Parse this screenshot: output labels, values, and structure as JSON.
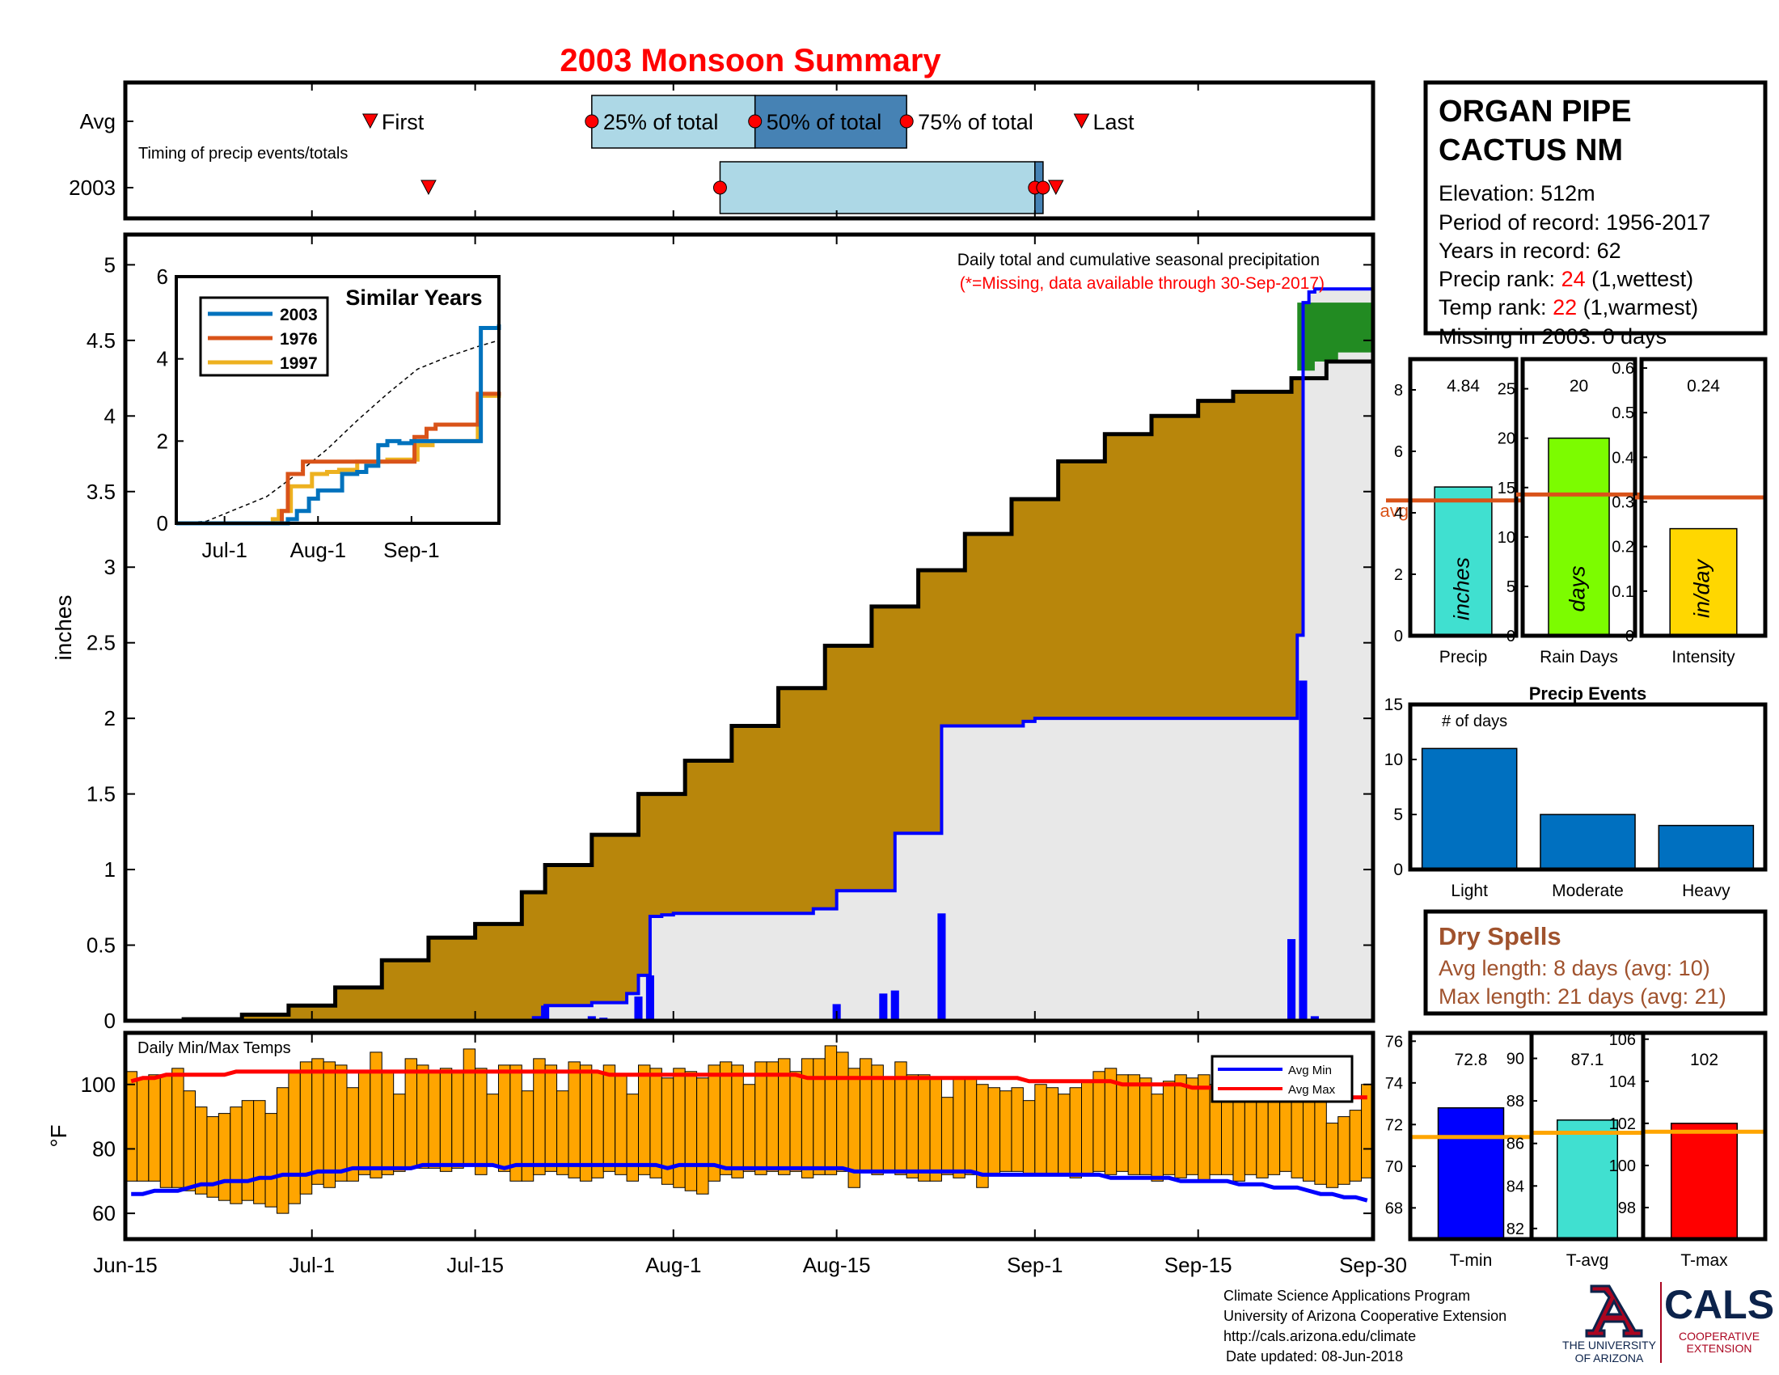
{
  "title": "2003 Monsoon Summary",
  "colors": {
    "title": "#ff0000",
    "avg_fill": "#b8860b",
    "year_fill": "#e8e8e8",
    "excess_fill": "#228b22",
    "daily_bar": "#0000ff",
    "temp_bar": "#ffa500",
    "avg_min": "#0000ff",
    "avg_max": "#ff0000",
    "box_light": "#add8e6",
    "box_dark": "#4682b4",
    "precip_bar": "#40e0d0",
    "raindays_bar": "#7cfc00",
    "intensity_bar": "#ffd700",
    "events_bar": "#0070c0",
    "tmin_bar": "#0000ff",
    "tavg_bar": "#40e0d0",
    "tmax_bar": "#ff0000",
    "avg_line": "#d95319",
    "temp_avg_line": "#ffa500",
    "dry_spells": "#a0522d",
    "rank_red": "#ff0000",
    "note_red": "#ff0000",
    "ua_red": "#ab0520",
    "ua_blue": "#0c234b"
  },
  "station": {
    "name_line1": "ORGAN PIPE",
    "name_line2": "CACTUS NM",
    "elevation": "Elevation: 512m",
    "period": "Period of record: 1956-2017",
    "years": "Years in record: 62",
    "precip_rank_label": "Precip rank: ",
    "precip_rank_value": "24",
    "precip_rank_suffix": " (1,wettest)",
    "temp_rank_label": "Temp rank: ",
    "temp_rank_value": "22",
    "temp_rank_suffix": " (1,warmest)",
    "missing": "Missing in 2003: 0 days"
  },
  "footer": {
    "line1": "Climate Science Applications Program",
    "line2": "University of Arizona Cooperative Extension",
    "line3": "http://cals.arizona.edu/climate",
    "line4": "Date updated: 08-Jun-2018",
    "ua_line1": "THE UNIVERSITY",
    "ua_line2": "OF ARIZONA",
    "cals": "CALS",
    "coop1": "COOPERATIVE",
    "coop2": "EXTENSION"
  },
  "chart_data": [
    {
      "id": "timing",
      "type": "timeline",
      "caption": "Timing of precip events/totals",
      "rows": [
        "Avg",
        "2003"
      ],
      "x_unit": "days since Jun-15",
      "avg": {
        "first": 21,
        "p25": 40,
        "p50": 54,
        "p75": 67,
        "last": 82,
        "labels": {
          "first": "First",
          "p25": "25% of total",
          "p50": "50% of total",
          "p75": "75% of total",
          "last": "Last"
        }
      },
      "year": {
        "first": 26,
        "p25": 51,
        "p50": 78,
        "p75": 78.7,
        "last": 79.8
      }
    },
    {
      "id": "main",
      "type": "area",
      "title": "Daily total and cumulative seasonal precipitation",
      "note": "(*=Missing, data available through 30-Sep-2017)",
      "ylabel": "inches",
      "ylim": [
        0,
        5.2
      ],
      "yticks": [
        0,
        0.5,
        1,
        1.5,
        2,
        2.5,
        3,
        3.5,
        4,
        4.5,
        5
      ],
      "ytick_labels": [
        "0",
        "0.5",
        "1",
        "1.5",
        "2",
        "2.5",
        "3",
        "3.5",
        "4",
        "4.5",
        "5"
      ],
      "xlim": [
        0,
        107
      ],
      "xticks": [
        0,
        16,
        30,
        47,
        61,
        78,
        92,
        107
      ],
      "xtick_labels": [
        "Jun-15",
        "Jul-1",
        "Jul-15",
        "Aug-1",
        "Aug-15",
        "Sep-1",
        "Sep-15",
        "Sep-30"
      ],
      "avg_cumulative": {
        "x": [
          0,
          5,
          10,
          14,
          18,
          22,
          26,
          30,
          34,
          36,
          40,
          44,
          48,
          52,
          56,
          60,
          64,
          68,
          72,
          76,
          80,
          84,
          88,
          92,
          95,
          100,
          103,
          107
        ],
        "y": [
          0,
          0.01,
          0.04,
          0.1,
          0.22,
          0.4,
          0.55,
          0.64,
          0.85,
          1.03,
          1.23,
          1.5,
          1.72,
          1.95,
          2.2,
          2.48,
          2.74,
          2.98,
          3.22,
          3.45,
          3.7,
          3.88,
          4.0,
          4.1,
          4.16,
          4.25,
          4.36,
          4.42
        ]
      },
      "year_cumulative": {
        "x": [
          0,
          33,
          35,
          36,
          40,
          43,
          44,
          45,
          46,
          47,
          59,
          61,
          65,
          66,
          69,
          70,
          77,
          78,
          100,
          100.5,
          101,
          101.5,
          102,
          107
        ],
        "y": [
          0,
          0,
          0.02,
          0.1,
          0.12,
          0.18,
          0.3,
          0.69,
          0.7,
          0.71,
          0.74,
          0.86,
          0.86,
          1.24,
          1.24,
          1.95,
          1.98,
          2.0,
          2.0,
          2.55,
          4.75,
          4.82,
          4.84,
          4.84
        ]
      },
      "daily": {
        "x": [
          36,
          40,
          41,
          44,
          45,
          61,
          65,
          66,
          70,
          75,
          76,
          100,
          101,
          102
        ],
        "y": [
          0.1,
          0.03,
          0.02,
          0.16,
          0.3,
          0.11,
          0.18,
          0.2,
          0.71,
          0.01,
          0.01,
          0.54,
          2.25,
          0.03
        ]
      },
      "inset": {
        "title": "Similar Years",
        "ylim": [
          0,
          6
        ],
        "yticks": [
          0,
          2,
          4,
          6
        ],
        "ytick_labels": [
          "0",
          "2",
          "4",
          "6"
        ],
        "xlim": [
          0,
          107
        ],
        "xticks": [
          16,
          47,
          78
        ],
        "xtick_labels": [
          "Jul-1",
          "Aug-1",
          "Sep-1"
        ],
        "series": [
          {
            "name": "2003",
            "color": "#0072bd",
            "x": [
              0,
              33,
              37,
              40,
              44,
              47,
              55,
              60,
              63,
              67,
              70,
              74,
              78,
              86,
              90,
              100,
              101,
              107
            ],
            "y": [
              0,
              0,
              0.1,
              0.3,
              0.6,
              0.8,
              1.2,
              1.25,
              1.4,
              1.9,
              2.0,
              1.95,
              2.0,
              2.0,
              2.0,
              2.0,
              4.75,
              4.84
            ]
          },
          {
            "name": "1976",
            "color": "#d95319",
            "x": [
              0,
              30,
              35,
              37,
              42,
              45,
              60,
              62,
              75,
              79,
              83,
              86,
              99,
              100,
              107
            ],
            "y": [
              0,
              0,
              0.3,
              1.2,
              1.5,
              1.5,
              1.5,
              1.5,
              1.5,
              2.1,
              2.3,
              2.4,
              2.4,
              3.15,
              3.2
            ]
          },
          {
            "name": "1997",
            "color": "#edb120",
            "x": [
              0,
              20,
              32,
              34,
              38,
              45,
              50,
              54,
              60,
              70,
              75,
              80,
              85,
              90,
              99,
              100,
              107
            ],
            "y": [
              0,
              0,
              0.1,
              0.3,
              0.9,
              1.2,
              1.25,
              1.3,
              1.5,
              1.55,
              1.55,
              1.9,
              2.0,
              2.0,
              2.0,
              3.1,
              3.2
            ]
          },
          {
            "name": "avg",
            "color": "#000000",
            "dashed": true,
            "x": [
              0,
              10,
              20,
              30,
              40,
              50,
              60,
              70,
              80,
              90,
              100,
              107
            ],
            "y": [
              0,
              0.05,
              0.35,
              0.65,
              1.2,
              1.8,
              2.5,
              3.15,
              3.75,
              4.05,
              4.3,
              4.45
            ]
          }
        ]
      }
    },
    {
      "id": "temps",
      "type": "bar",
      "caption": "Daily Min/Max Temps",
      "ylabel": "°F",
      "ylim": [
        52,
        116
      ],
      "yticks": [
        60,
        80,
        100
      ],
      "ytick_labels": [
        "60",
        "80",
        "100"
      ],
      "xlim": [
        0,
        107
      ],
      "legend": [
        "Avg Min",
        "Avg Max"
      ],
      "legend_position": "top-right",
      "tmin": [
        70,
        70,
        70,
        68,
        68,
        67,
        66,
        65,
        64,
        63,
        64,
        63,
        62,
        60,
        63,
        66,
        69,
        68,
        70,
        70,
        72,
        71,
        72,
        73,
        74,
        74,
        74,
        73,
        74,
        75,
        72,
        75,
        73,
        70,
        70,
        72,
        73,
        72,
        71,
        70,
        71,
        73,
        72,
        70,
        72,
        71,
        69,
        68,
        67,
        66,
        70,
        72,
        71,
        73,
        72,
        73,
        72,
        73,
        71,
        72,
        72,
        73,
        68,
        73,
        72,
        73,
        72,
        71,
        70,
        70,
        72,
        71,
        72,
        68,
        72,
        73,
        73,
        72,
        72,
        72,
        72,
        71,
        72,
        73,
        72,
        73,
        72,
        72,
        70,
        72,
        71,
        72,
        70,
        72,
        72,
        70,
        72,
        71,
        72,
        73,
        71,
        70,
        69,
        68,
        69,
        70,
        71
      ],
      "tmax": [
        104,
        102,
        103,
        103,
        105,
        98,
        93,
        90,
        91,
        93,
        95,
        95,
        91,
        99,
        104,
        107,
        108,
        107,
        106,
        99,
        104,
        110,
        104,
        97,
        108,
        106,
        104,
        105,
        104,
        111,
        105,
        97,
        106,
        106,
        98,
        108,
        106,
        98,
        107,
        106,
        104,
        106,
        103,
        97,
        106,
        105,
        102,
        105,
        104,
        102,
        106,
        107,
        106,
        100,
        107,
        107,
        108,
        104,
        108,
        108,
        112,
        110,
        105,
        108,
        106,
        102,
        107,
        103,
        103,
        102,
        96,
        102,
        102,
        100,
        99,
        98,
        99,
        95,
        100,
        99,
        97,
        99,
        101,
        104,
        105,
        103,
        103,
        102,
        97,
        101,
        103,
        102,
        103,
        100,
        99,
        99,
        101,
        102,
        99,
        97,
        102,
        96,
        95,
        88,
        90,
        92,
        100
      ],
      "avg_min": [
        66,
        66,
        67,
        67,
        67,
        68,
        69,
        69,
        70,
        70,
        70,
        71,
        71,
        72,
        72,
        72,
        73,
        73,
        73,
        74,
        74,
        74,
        74,
        74,
        74,
        75,
        75,
        75,
        75,
        75,
        75,
        75,
        74,
        75,
        75,
        75,
        75,
        75,
        75,
        75,
        75,
        75,
        75,
        75,
        75,
        75,
        74,
        75,
        75,
        75,
        75,
        74,
        74,
        74,
        74,
        74,
        74,
        74,
        74,
        74,
        74,
        74,
        73,
        73,
        73,
        73,
        73,
        73,
        73,
        73,
        73,
        73,
        73,
        72,
        72,
        72,
        72,
        72,
        72,
        72,
        72,
        72,
        72,
        72,
        71,
        71,
        71,
        71,
        71,
        71,
        70,
        70,
        70,
        70,
        70,
        69,
        69,
        69,
        68,
        68,
        68,
        67,
        66,
        66,
        65,
        65,
        64
      ],
      "avg_max": [
        101,
        102,
        102,
        103,
        103,
        103,
        103,
        103,
        103,
        104,
        104,
        104,
        104,
        104,
        104,
        104,
        104,
        104,
        104,
        104,
        104,
        104,
        104,
        104,
        104,
        104,
        104,
        104,
        104,
        104,
        104,
        104,
        104,
        104,
        104,
        104,
        104,
        104,
        104,
        104,
        104,
        103,
        103,
        103,
        103,
        103,
        103,
        103,
        103,
        103,
        103,
        103,
        103,
        103,
        103,
        103,
        103,
        103,
        102,
        102,
        102,
        102,
        102,
        102,
        102,
        102,
        102,
        102,
        102,
        102,
        102,
        102,
        102,
        102,
        102,
        102,
        102,
        101,
        101,
        101,
        101,
        101,
        101,
        101,
        101,
        100,
        100,
        100,
        100,
        100,
        100,
        99,
        99,
        99,
        99,
        99,
        98,
        98,
        98,
        98,
        98,
        97,
        97,
        97,
        96,
        96,
        96
      ]
    },
    {
      "id": "precip",
      "type": "bar",
      "categories": [
        "Precip"
      ],
      "values": [
        4.84
      ],
      "value_label": "4.84",
      "inner_label": "inches",
      "avg": 4.4,
      "avg_label": "avg",
      "ylim": [
        0,
        9
      ],
      "yticks": [
        0,
        2,
        4,
        6,
        8
      ],
      "ytick_labels": [
        "0",
        "2",
        "4",
        "6",
        "8"
      ]
    },
    {
      "id": "raindays",
      "type": "bar",
      "categories": [
        "Rain Days"
      ],
      "values": [
        20
      ],
      "value_label": "20",
      "inner_label": "days",
      "avg": 14.3,
      "ylim": [
        0,
        28
      ],
      "yticks": [
        0,
        5,
        10,
        15,
        20,
        25
      ],
      "ytick_labels": [
        "0",
        "5",
        "10",
        "15",
        "20",
        "25"
      ]
    },
    {
      "id": "intensity",
      "type": "bar",
      "categories": [
        "Intensity"
      ],
      "values": [
        0.24
      ],
      "value_label": "0.24",
      "inner_label": "in/day",
      "avg": 0.31,
      "ylim": [
        0,
        0.62
      ],
      "yticks": [
        0,
        0.1,
        0.2,
        0.3,
        0.4,
        0.5,
        0.6
      ],
      "ytick_labels": [
        "0",
        "0.1",
        "0.2",
        "0.3",
        "0.4",
        "0.5",
        "0.6"
      ]
    },
    {
      "id": "events",
      "type": "bar",
      "title": "Precip Events",
      "ylabel": "# of days",
      "categories": [
        "Light",
        "Moderate",
        "Heavy"
      ],
      "values": [
        11,
        5,
        4
      ],
      "ylim": [
        0,
        15
      ],
      "yticks": [
        0,
        5,
        10,
        15
      ],
      "ytick_labels": [
        "0",
        "5",
        "10",
        "15"
      ]
    },
    {
      "id": "tmin",
      "type": "bar",
      "categories": [
        "T-min"
      ],
      "values": [
        72.8
      ],
      "value_label": "72.8",
      "avg": 71.4,
      "ylim": [
        66.5,
        76.4
      ],
      "yticks": [
        68,
        70,
        72,
        74,
        76
      ],
      "ytick_labels": [
        "68",
        "70",
        "72",
        "74",
        "76"
      ]
    },
    {
      "id": "tavg",
      "type": "bar",
      "categories": [
        "T-avg"
      ],
      "values": [
        87.1
      ],
      "value_label": "87.1",
      "avg": 86.5,
      "ylim": [
        81.5,
        91.2
      ],
      "yticks": [
        82,
        84,
        86,
        88,
        90
      ],
      "ytick_labels": [
        "82",
        "84",
        "86",
        "88",
        "90"
      ]
    },
    {
      "id": "tmax",
      "type": "bar",
      "categories": [
        "T-max"
      ],
      "values": [
        102
      ],
      "value_label": "102",
      "avg": 101.6,
      "ylim": [
        96.5,
        106.3
      ],
      "yticks": [
        98,
        100,
        102,
        104,
        106
      ],
      "ytick_labels": [
        "98",
        "100",
        "102",
        "104",
        "106"
      ]
    }
  ],
  "dry_spells": {
    "title": "Dry Spells",
    "avg_length": "Avg length: 8 days (avg: 10)",
    "max_length": "Max length: 21 days (avg: 21)"
  }
}
